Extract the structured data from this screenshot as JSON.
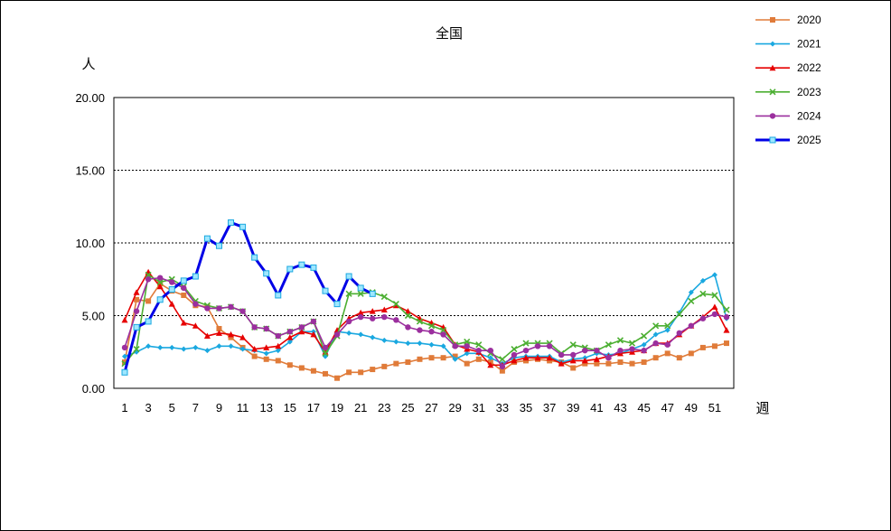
{
  "chart_data": {
    "type": "line",
    "title": "全国",
    "ylabel": "人",
    "xlabel": "週",
    "ylim": [
      0,
      20
    ],
    "y_ticks": [
      "0.00",
      "5.00",
      "10.00",
      "15.00",
      "20.00"
    ],
    "x_tick_labels": [
      "1",
      "3",
      "5",
      "7",
      "9",
      "11",
      "13",
      "15",
      "17",
      "19",
      "21",
      "23",
      "25",
      "27",
      "29",
      "31",
      "33",
      "35",
      "37",
      "39",
      "41",
      "43",
      "45",
      "47",
      "49",
      "51"
    ],
    "grid": "horizontal dotted",
    "legend_position": "right",
    "series": [
      {
        "name": "2020",
        "color": "#e07b39",
        "marker": "square",
        "values": [
          1.8,
          6.1,
          6.0,
          7.2,
          6.7,
          6.4,
          5.7,
          5.6,
          4.1,
          3.5,
          2.8,
          2.2,
          2.0,
          1.9,
          1.6,
          1.4,
          1.2,
          1.0,
          0.7,
          1.1,
          1.1,
          1.3,
          1.5,
          1.7,
          1.8,
          2.0,
          2.1,
          2.1,
          2.2,
          1.7,
          2.0,
          1.8,
          1.2,
          1.8,
          1.9,
          2.0,
          1.9,
          1.8,
          1.4,
          1.7,
          1.7,
          1.7,
          1.8,
          1.7,
          1.8,
          2.1,
          2.4,
          2.1,
          2.4,
          2.8,
          2.9,
          3.1
        ]
      },
      {
        "name": "2021",
        "color": "#1aa8e0",
        "marker": "diamond",
        "values": [
          2.2,
          2.5,
          2.9,
          2.8,
          2.8,
          2.7,
          2.8,
          2.6,
          2.9,
          2.9,
          2.7,
          2.6,
          2.4,
          2.6,
          3.2,
          3.9,
          3.9,
          2.2,
          3.9,
          3.8,
          3.7,
          3.5,
          3.3,
          3.2,
          3.1,
          3.1,
          3.0,
          2.9,
          2.0,
          2.4,
          2.4,
          2.1,
          1.7,
          2.1,
          2.2,
          2.2,
          2.2,
          1.8,
          2.0,
          2.1,
          2.4,
          2.3,
          2.4,
          2.7,
          3.0,
          3.7,
          4.0,
          5.2,
          6.6,
          7.4,
          7.8,
          4.8
        ]
      },
      {
        "name": "2022",
        "color": "#e60000",
        "marker": "triangle",
        "values": [
          4.7,
          6.6,
          8.0,
          7.0,
          5.8,
          4.5,
          4.3,
          3.6,
          3.8,
          3.7,
          3.5,
          2.7,
          2.8,
          2.9,
          3.5,
          3.9,
          3.7,
          2.5,
          4.0,
          4.8,
          5.2,
          5.3,
          5.4,
          5.7,
          5.3,
          4.8,
          4.5,
          4.2,
          3.0,
          2.7,
          2.5,
          1.6,
          1.6,
          1.9,
          2.1,
          2.1,
          2.1,
          1.7,
          1.9,
          1.9,
          2.0,
          2.2,
          2.4,
          2.5,
          2.6,
          3.1,
          3.1,
          3.7,
          4.3,
          4.9,
          5.6,
          4.0
        ]
      },
      {
        "name": "2023",
        "color": "#4caf32",
        "marker": "x",
        "values": [
          1.7,
          2.7,
          7.8,
          7.3,
          7.5,
          7.0,
          6.0,
          5.7,
          5.5,
          5.6,
          5.3,
          4.2,
          4.1,
          3.6,
          3.9,
          4.2,
          4.6,
          2.4,
          3.6,
          6.5,
          6.5,
          6.6,
          6.3,
          5.8,
          5.0,
          4.6,
          4.3,
          4.0,
          3.0,
          3.2,
          3.0,
          2.4,
          2.0,
          2.7,
          3.1,
          3.1,
          3.1,
          2.4,
          3.0,
          2.8,
          2.6,
          3.0,
          3.3,
          3.1,
          3.6,
          4.3,
          4.3,
          5.1,
          6.0,
          6.5,
          6.4,
          5.4
        ]
      },
      {
        "name": "2024",
        "color": "#9b2f9e",
        "marker": "circle",
        "values": [
          2.8,
          5.3,
          7.5,
          7.6,
          7.3,
          6.9,
          5.8,
          5.5,
          5.5,
          5.6,
          5.3,
          4.2,
          4.1,
          3.6,
          3.9,
          4.2,
          4.6,
          2.8,
          3.7,
          4.6,
          4.9,
          4.8,
          4.9,
          4.7,
          4.2,
          4.0,
          3.9,
          3.7,
          2.9,
          2.9,
          2.6,
          2.6,
          1.5,
          2.3,
          2.6,
          2.9,
          2.9,
          2.3,
          2.3,
          2.6,
          2.6,
          2.1,
          2.6,
          2.7,
          2.6,
          3.1,
          3.0,
          3.8,
          4.3,
          4.8,
          5.1,
          4.9
        ]
      },
      {
        "name": "2025",
        "color": "#0000e6",
        "marker": "square-open",
        "values": [
          1.1,
          4.2,
          4.6,
          6.1,
          6.8,
          7.4,
          7.7,
          10.3,
          9.8,
          11.4,
          11.1,
          9.0,
          7.9,
          6.4,
          8.2,
          8.5,
          8.3,
          6.7,
          5.8,
          7.7,
          6.9,
          6.5
        ]
      }
    ]
  }
}
